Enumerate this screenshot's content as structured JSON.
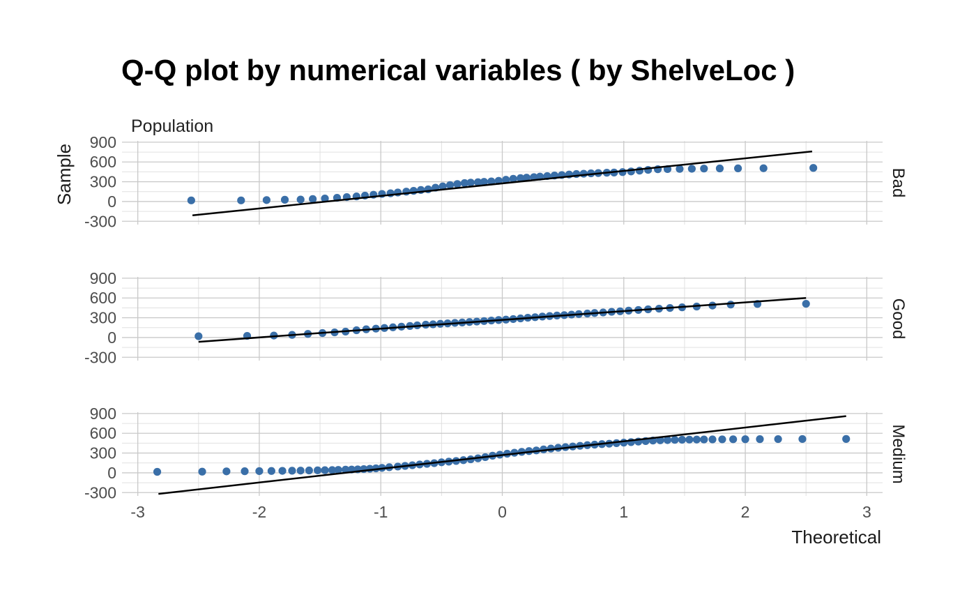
{
  "chart_data": {
    "type": "scatter",
    "title": "Q-Q plot by numerical variables ( by ShelveLoc )",
    "subtitle": "Population",
    "xlabel": "Theoretical",
    "ylabel": "Sample",
    "xlim": [
      -3.13,
      3.13
    ],
    "ylim": [
      -350,
      920
    ],
    "x_ticks": [
      -3,
      -2,
      -1,
      0,
      1,
      2,
      3
    ],
    "x_tick_labels": [
      "-3",
      "-2",
      "-1",
      "0",
      "1",
      "2",
      "3"
    ],
    "y_ticks": [
      -300,
      0,
      300,
      600,
      900
    ],
    "y_tick_labels": [
      "-300",
      "0",
      "300",
      "600",
      "900"
    ],
    "grid": true,
    "point_color": "#3A6FA8",
    "line_color": "#000000",
    "panels": [
      {
        "label": "Bad",
        "line": {
          "x": [
            -2.55,
            2.55
          ],
          "y": [
            -210,
            760
          ]
        },
        "points": {
          "x": [
            -2.56,
            -2.15,
            -1.94,
            -1.79,
            -1.66,
            -1.56,
            -1.46,
            -1.36,
            -1.28,
            -1.2,
            -1.13,
            -1.06,
            -0.99,
            -0.92,
            -0.86,
            -0.79,
            -0.73,
            -0.67,
            -0.61,
            -0.55,
            -0.49,
            -0.43,
            -0.37,
            -0.31,
            -0.26,
            -0.2,
            -0.15,
            -0.09,
            -0.03,
            0.03,
            0.09,
            0.15,
            0.2,
            0.26,
            0.31,
            0.37,
            0.43,
            0.49,
            0.55,
            0.61,
            0.67,
            0.73,
            0.79,
            0.86,
            0.92,
            0.99,
            1.06,
            1.13,
            1.2,
            1.28,
            1.36,
            1.46,
            1.56,
            1.66,
            1.79,
            1.94,
            2.15,
            2.56
          ],
          "y": [
            17,
            17,
            22,
            27,
            30,
            38,
            46,
            57,
            67,
            77,
            90,
            103,
            115,
            125,
            137,
            150,
            162,
            175,
            185,
            210,
            230,
            250,
            265,
            280,
            287,
            293,
            298,
            305,
            315,
            330,
            345,
            355,
            362,
            370,
            378,
            386,
            395,
            402,
            410,
            417,
            422,
            428,
            432,
            437,
            440,
            446,
            456,
            468,
            480,
            490,
            492,
            495,
            497,
            500,
            502,
            503,
            505,
            510
          ]
        }
      },
      {
        "label": "Good",
        "line": {
          "x": [
            -2.5,
            2.5
          ],
          "y": [
            -65,
            600
          ]
        },
        "points": {
          "x": [
            -2.5,
            -2.1,
            -1.88,
            -1.73,
            -1.6,
            -1.48,
            -1.38,
            -1.29,
            -1.2,
            -1.12,
            -1.04,
            -0.97,
            -0.9,
            -0.83,
            -0.76,
            -0.7,
            -0.63,
            -0.57,
            -0.51,
            -0.45,
            -0.39,
            -0.33,
            -0.27,
            -0.21,
            -0.15,
            -0.09,
            -0.03,
            0.03,
            0.09,
            0.15,
            0.21,
            0.27,
            0.33,
            0.39,
            0.45,
            0.51,
            0.57,
            0.63,
            0.7,
            0.76,
            0.83,
            0.9,
            0.97,
            1.04,
            1.12,
            1.2,
            1.29,
            1.38,
            1.48,
            1.6,
            1.73,
            1.88,
            2.1,
            2.5
          ],
          "y": [
            20,
            25,
            30,
            40,
            55,
            68,
            78,
            90,
            110,
            125,
            135,
            145,
            155,
            165,
            175,
            185,
            195,
            200,
            208,
            215,
            222,
            228,
            235,
            242,
            250,
            258,
            265,
            272,
            280,
            290,
            300,
            308,
            318,
            326,
            334,
            340,
            348,
            356,
            364,
            372,
            380,
            390,
            398,
            408,
            418,
            428,
            438,
            448,
            458,
            470,
            485,
            500,
            510,
            512
          ]
        }
      },
      {
        "label": "Medium",
        "line": {
          "x": [
            -2.83,
            2.83
          ],
          "y": [
            -320,
            860
          ]
        },
        "points": {
          "x": [
            -2.84,
            -2.47,
            -2.27,
            -2.12,
            -2.0,
            -1.9,
            -1.81,
            -1.73,
            -1.66,
            -1.59,
            -1.52,
            -1.46,
            -1.4,
            -1.35,
            -1.29,
            -1.24,
            -1.19,
            -1.14,
            -1.09,
            -1.04,
            -0.99,
            -0.93,
            -0.86,
            -0.8,
            -0.74,
            -0.68,
            -0.62,
            -0.56,
            -0.5,
            -0.44,
            -0.38,
            -0.32,
            -0.26,
            -0.2,
            -0.14,
            -0.08,
            -0.02,
            0.04,
            0.1,
            0.16,
            0.22,
            0.28,
            0.34,
            0.4,
            0.46,
            0.52,
            0.58,
            0.64,
            0.7,
            0.76,
            0.82,
            0.88,
            0.94,
            1.0,
            1.06,
            1.12,
            1.18,
            1.24,
            1.3,
            1.36,
            1.42,
            1.48,
            1.54,
            1.6,
            1.66,
            1.73,
            1.81,
            1.9,
            2.0,
            2.12,
            2.27,
            2.47,
            2.83
          ],
          "y": [
            15,
            18,
            22,
            24,
            26,
            28,
            30,
            32,
            34,
            36,
            38,
            40,
            42,
            45,
            48,
            50,
            53,
            57,
            62,
            68,
            75,
            85,
            95,
            105,
            115,
            127,
            137,
            147,
            160,
            170,
            180,
            192,
            205,
            220,
            238,
            260,
            275,
            290,
            305,
            318,
            330,
            340,
            355,
            368,
            380,
            390,
            400,
            410,
            420,
            428,
            436,
            442,
            450,
            458,
            466,
            474,
            482,
            490,
            494,
            497,
            500,
            502,
            504,
            505,
            506,
            507,
            508,
            509,
            510,
            511,
            512,
            513,
            514
          ]
        }
      }
    ]
  }
}
